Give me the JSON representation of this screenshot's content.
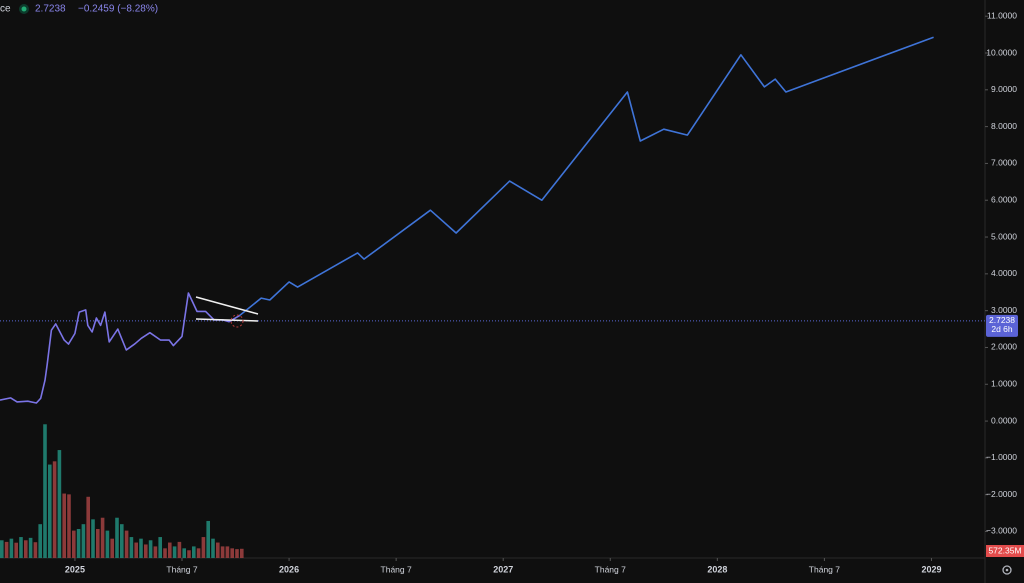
{
  "chart_data": {
    "type": "line",
    "header": {
      "symbol": "ce",
      "change": "−0.2459 (−8.28%)"
    },
    "last_price": 2.7238,
    "last_price_label": "2.7238",
    "countdown": "2d 6h",
    "xlim": [
      2024.65,
      2029.25
    ],
    "xticks": [
      2025,
      {
        "value": 2025.5,
        "label": "Tháng 7"
      },
      2026,
      {
        "value": 2026.5,
        "label": "Tháng 7"
      },
      2027,
      {
        "value": 2027.5,
        "label": "Tháng 7"
      },
      2028,
      {
        "value": 2028.5,
        "label": "Tháng 7"
      },
      2029
    ],
    "ylim": [
      -3.72,
      11.44
    ],
    "yticks": [
      {
        "value": 11,
        "label": "11.0000"
      },
      {
        "value": 10,
        "label": "10.0000"
      },
      {
        "value": 9,
        "label": "9.0000"
      },
      {
        "value": 8,
        "label": "8.0000"
      },
      {
        "value": 7,
        "label": "7.0000"
      },
      {
        "value": 6,
        "label": "6.0000"
      },
      {
        "value": 5,
        "label": "5.0000"
      },
      {
        "value": 4,
        "label": "4.0000"
      },
      {
        "value": 3,
        "label": "3.0000"
      },
      {
        "value": 2,
        "label": "2.0000"
      },
      {
        "value": 1,
        "label": "1.0000"
      },
      {
        "value": 0,
        "label": "0.0000"
      },
      {
        "value": -1,
        "label": "−1.0000"
      },
      {
        "value": -2,
        "label": "−2.0000"
      },
      {
        "value": -3,
        "label": "−3.0000"
      }
    ],
    "series": [
      {
        "color": "#7b74e6",
        "x": [
          2024.65,
          2024.7,
          2024.73,
          2024.78,
          2024.82,
          2024.84,
          2024.86,
          2024.87,
          2024.89,
          2024.91,
          2024.95,
          2024.97,
          2025.0,
          2025.02,
          2025.05,
          2025.06,
          2025.08,
          2025.1,
          2025.12,
          2025.14,
          2025.16,
          2025.2,
          2025.24,
          2025.28,
          2025.31,
          2025.35,
          2025.4,
          2025.44,
          2025.46,
          2025.5,
          2025.53,
          2025.57,
          2025.61,
          2025.65,
          2025.69,
          2025.72,
          2025.77
        ],
        "values": [
          0.57,
          0.63,
          0.52,
          0.54,
          0.49,
          0.62,
          1.11,
          1.52,
          2.47,
          2.64,
          2.2,
          2.09,
          2.38,
          2.96,
          3.02,
          2.6,
          2.42,
          2.8,
          2.6,
          2.96,
          2.15,
          2.5,
          1.93,
          2.1,
          2.25,
          2.4,
          2.2,
          2.2,
          2.05,
          2.3,
          3.48,
          2.98,
          2.98,
          2.75,
          2.75,
          2.7,
          2.87
        ]
      },
      {
        "color": "#3f74d8",
        "x": [
          2025.77,
          2025.87,
          2025.91,
          2026.0,
          2026.04,
          2026.32,
          2026.35,
          2026.66,
          2026.78,
          2027.03,
          2027.18,
          2027.58,
          2027.64,
          2027.75,
          2027.86,
          2028.11,
          2028.22,
          2028.27,
          2028.32,
          2029.01
        ],
        "values": [
          2.87,
          3.34,
          3.29,
          3.78,
          3.64,
          4.57,
          4.4,
          5.73,
          5.11,
          6.52,
          6.0,
          8.94,
          7.61,
          7.93,
          7.77,
          9.95,
          9.08,
          9.29,
          8.94,
          10.43
        ]
      }
    ],
    "volume": {
      "ylim": [
        0,
        9000
      ],
      "up_color": "#1f7a6c",
      "down_color": "#8c3a3a",
      "values": [
        1100,
        1000,
        1200,
        950,
        1300,
        1100,
        1250,
        980,
        2100,
        8300,
        5800,
        6000,
        6700,
        4000,
        3950,
        1700,
        1800,
        2100,
        3800,
        2400,
        1800,
        2500,
        1700,
        1200,
        2500,
        2100,
        1700,
        1300,
        960,
        1200,
        840,
        1100,
        720,
        1300,
        600,
        960,
        720,
        1000,
        600,
        480,
        720,
        600,
        1300,
        2300,
        1200,
        960,
        720,
        720,
        600,
        550,
        572.35
      ],
      "directions": [
        "u",
        "d",
        "u",
        "d",
        "u",
        "d",
        "u",
        "d",
        "u",
        "u",
        "u",
        "d",
        "u",
        "d",
        "d",
        "d",
        "u",
        "u",
        "d",
        "u",
        "d",
        "d",
        "u",
        "d",
        "u",
        "u",
        "d",
        "u",
        "d",
        "u",
        "d",
        "u",
        "d",
        "u",
        "d",
        "d",
        "u",
        "d",
        "u",
        "d",
        "u",
        "d",
        "d",
        "u",
        "u",
        "d",
        "d",
        "d",
        "d",
        "d",
        "d"
      ],
      "last_label": "572.35M"
    }
  }
}
